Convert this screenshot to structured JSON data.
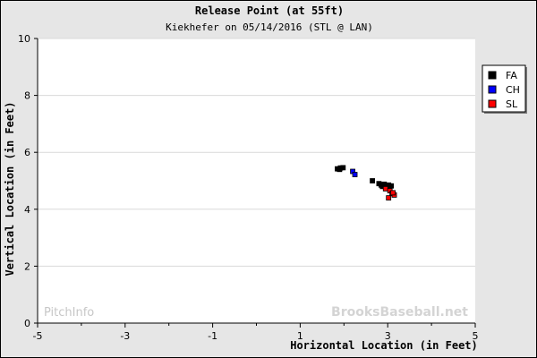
{
  "chart_data": {
    "type": "scatter",
    "title": "Release Point (at 55ft)",
    "subtitle": "Kiekhefer on 05/14/2016 (STL @ LAN)",
    "xlabel": "Horizontal Location (in Feet)",
    "ylabel": "Vertical Location (in Feet)",
    "xlim": [
      -5,
      5
    ],
    "ylim": [
      0,
      10
    ],
    "x_ticks": [
      -5,
      -3,
      -1,
      1,
      3,
      5
    ],
    "y_ticks": [
      0,
      2,
      4,
      6,
      8,
      10
    ],
    "grid": "horizontal",
    "legend_position": "right",
    "series": [
      {
        "name": "FA",
        "color": "#000000",
        "points": [
          [
            1.85,
            5.42
          ],
          [
            1.92,
            5.45
          ],
          [
            1.98,
            5.46
          ],
          [
            1.9,
            5.4
          ],
          [
            2.65,
            5.0
          ],
          [
            2.8,
            4.9
          ],
          [
            2.85,
            4.85
          ],
          [
            2.88,
            4.8
          ],
          [
            2.92,
            4.88
          ],
          [
            2.95,
            4.82
          ],
          [
            3.0,
            4.75
          ],
          [
            3.02,
            4.85
          ],
          [
            3.05,
            4.8
          ],
          [
            3.08,
            4.82
          ],
          [
            2.97,
            4.78
          ]
        ]
      },
      {
        "name": "CH",
        "color": "#0000ff",
        "points": [
          [
            2.2,
            5.33
          ],
          [
            2.25,
            5.22
          ]
        ]
      },
      {
        "name": "SL",
        "color": "#ff0000",
        "points": [
          [
            2.95,
            4.72
          ],
          [
            3.05,
            4.65
          ],
          [
            3.1,
            4.55
          ],
          [
            3.15,
            4.5
          ],
          [
            3.02,
            4.4
          ],
          [
            3.12,
            4.58
          ]
        ]
      }
    ]
  },
  "watermarks": {
    "left": "PitchInfo",
    "right": "BrooksBaseball.net"
  }
}
